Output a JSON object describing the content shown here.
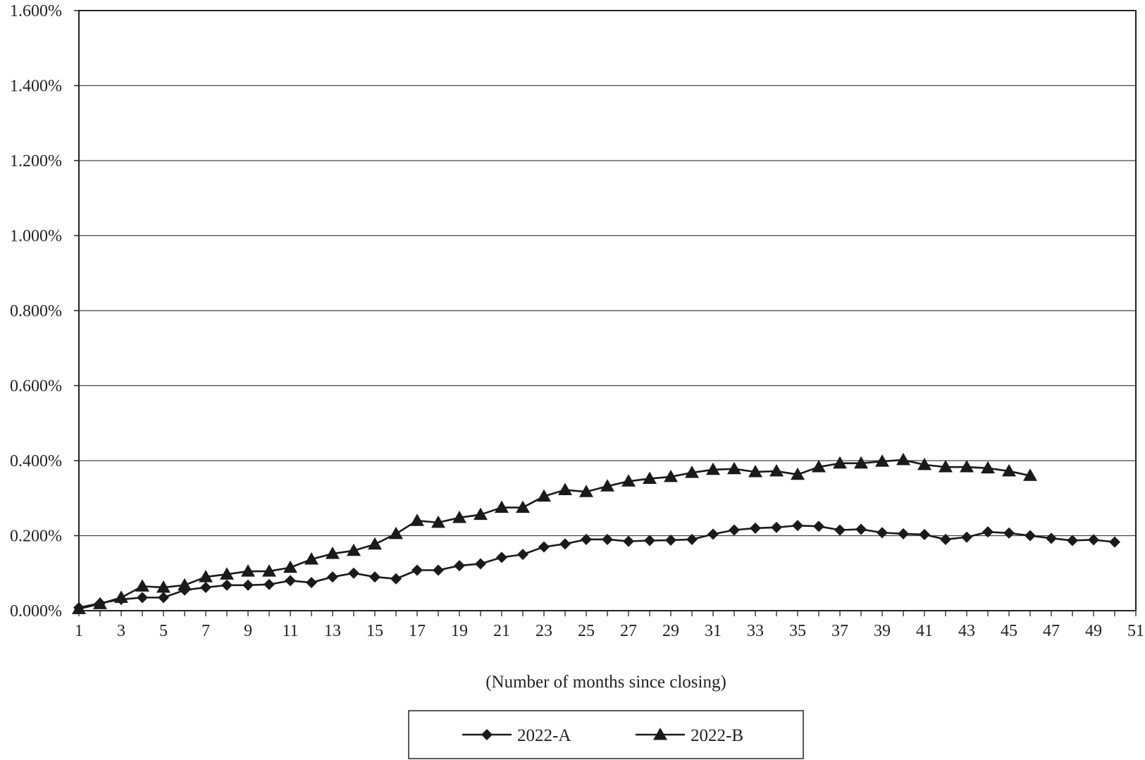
{
  "chart_data": {
    "type": "line",
    "title": "",
    "xlabel": "(Number of months since closing)",
    "ylabel": "",
    "xlim": [
      1,
      51
    ],
    "ylim": [
      0,
      1.6
    ],
    "x_ticks": [
      "1",
      "3",
      "5",
      "7",
      "9",
      "11",
      "13",
      "15",
      "17",
      "19",
      "21",
      "23",
      "25",
      "27",
      "29",
      "31",
      "33",
      "35",
      "37",
      "39",
      "41",
      "43",
      "45",
      "47",
      "49",
      "51"
    ],
    "y_ticks": [
      "0.000%",
      "0.200%",
      "0.400%",
      "0.600%",
      "0.800%",
      "1.000%",
      "1.200%",
      "1.400%",
      "1.600%"
    ],
    "y_tick_values": [
      0,
      0.2,
      0.4,
      0.6,
      0.8,
      1.0,
      1.2,
      1.4,
      1.6
    ],
    "grid": "horizontal",
    "legend_position": "bottom-center",
    "series": [
      {
        "name": "2022-A",
        "marker": "diamond",
        "color": "#1a1a1a",
        "x": [
          1,
          2,
          3,
          4,
          5,
          6,
          7,
          8,
          9,
          10,
          11,
          12,
          13,
          14,
          15,
          16,
          17,
          18,
          19,
          20,
          21,
          22,
          23,
          24,
          25,
          26,
          27,
          28,
          29,
          30,
          31,
          32,
          33,
          34,
          35,
          36,
          37,
          38,
          39,
          40,
          41,
          42,
          43,
          44,
          45,
          46,
          47,
          48,
          49,
          50
        ],
        "values": [
          0.008,
          0.02,
          0.03,
          0.035,
          0.035,
          0.055,
          0.062,
          0.068,
          0.068,
          0.07,
          0.08,
          0.075,
          0.09,
          0.1,
          0.09,
          0.085,
          0.108,
          0.108,
          0.12,
          0.125,
          0.142,
          0.15,
          0.17,
          0.178,
          0.19,
          0.19,
          0.185,
          0.187,
          0.188,
          0.19,
          0.204,
          0.215,
          0.22,
          0.222,
          0.227,
          0.225,
          0.215,
          0.217,
          0.208,
          0.205,
          0.203,
          0.19,
          0.196,
          0.21,
          0.207,
          0.2,
          0.193,
          0.187,
          0.189,
          0.183
        ]
      },
      {
        "name": "2022-B",
        "marker": "triangle",
        "color": "#1a1a1a",
        "x": [
          1,
          2,
          3,
          4,
          5,
          6,
          7,
          8,
          9,
          10,
          11,
          12,
          13,
          14,
          15,
          16,
          17,
          18,
          19,
          20,
          21,
          22,
          23,
          24,
          25,
          26,
          27,
          28,
          29,
          30,
          31,
          32,
          33,
          34,
          35,
          36,
          37,
          38,
          39,
          40,
          41,
          42,
          43,
          44,
          45,
          46
        ],
        "values": [
          0.005,
          0.018,
          0.035,
          0.065,
          0.062,
          0.068,
          0.09,
          0.097,
          0.105,
          0.105,
          0.115,
          0.137,
          0.152,
          0.16,
          0.177,
          0.205,
          0.24,
          0.235,
          0.248,
          0.256,
          0.275,
          0.275,
          0.305,
          0.322,
          0.317,
          0.332,
          0.345,
          0.352,
          0.357,
          0.368,
          0.376,
          0.378,
          0.37,
          0.372,
          0.363,
          0.383,
          0.393,
          0.393,
          0.398,
          0.402,
          0.389,
          0.383,
          0.383,
          0.38,
          0.372,
          0.36
        ]
      }
    ]
  }
}
